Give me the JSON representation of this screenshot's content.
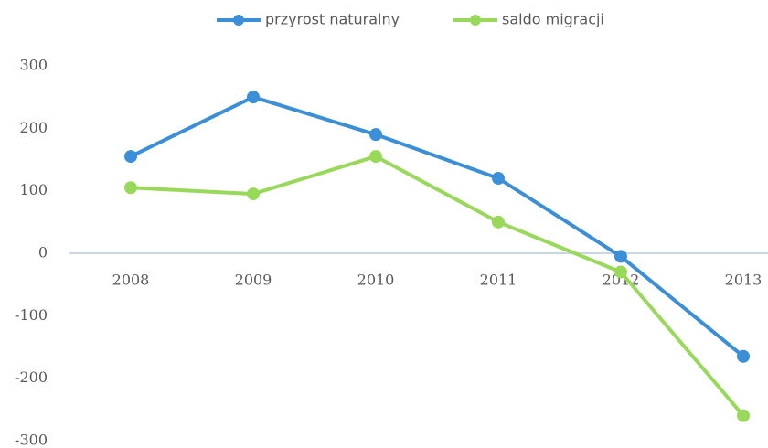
{
  "chart_data": {
    "type": "line",
    "categories": [
      "2008",
      "2009",
      "2010",
      "2011",
      "2012",
      "2013"
    ],
    "series": [
      {
        "name": "przyrost naturalny",
        "color": "#3b8fd8",
        "values": [
          155,
          250,
          190,
          120,
          -5,
          -165
        ]
      },
      {
        "name": "saldo migracji",
        "color": "#98d95a",
        "values": [
          105,
          95,
          155,
          50,
          -30,
          -260
        ]
      }
    ],
    "ylim": [
      -300,
      300
    ],
    "yticks": [
      -300,
      -200,
      -100,
      0,
      100,
      200,
      300
    ],
    "grid": false,
    "legend": "top"
  }
}
